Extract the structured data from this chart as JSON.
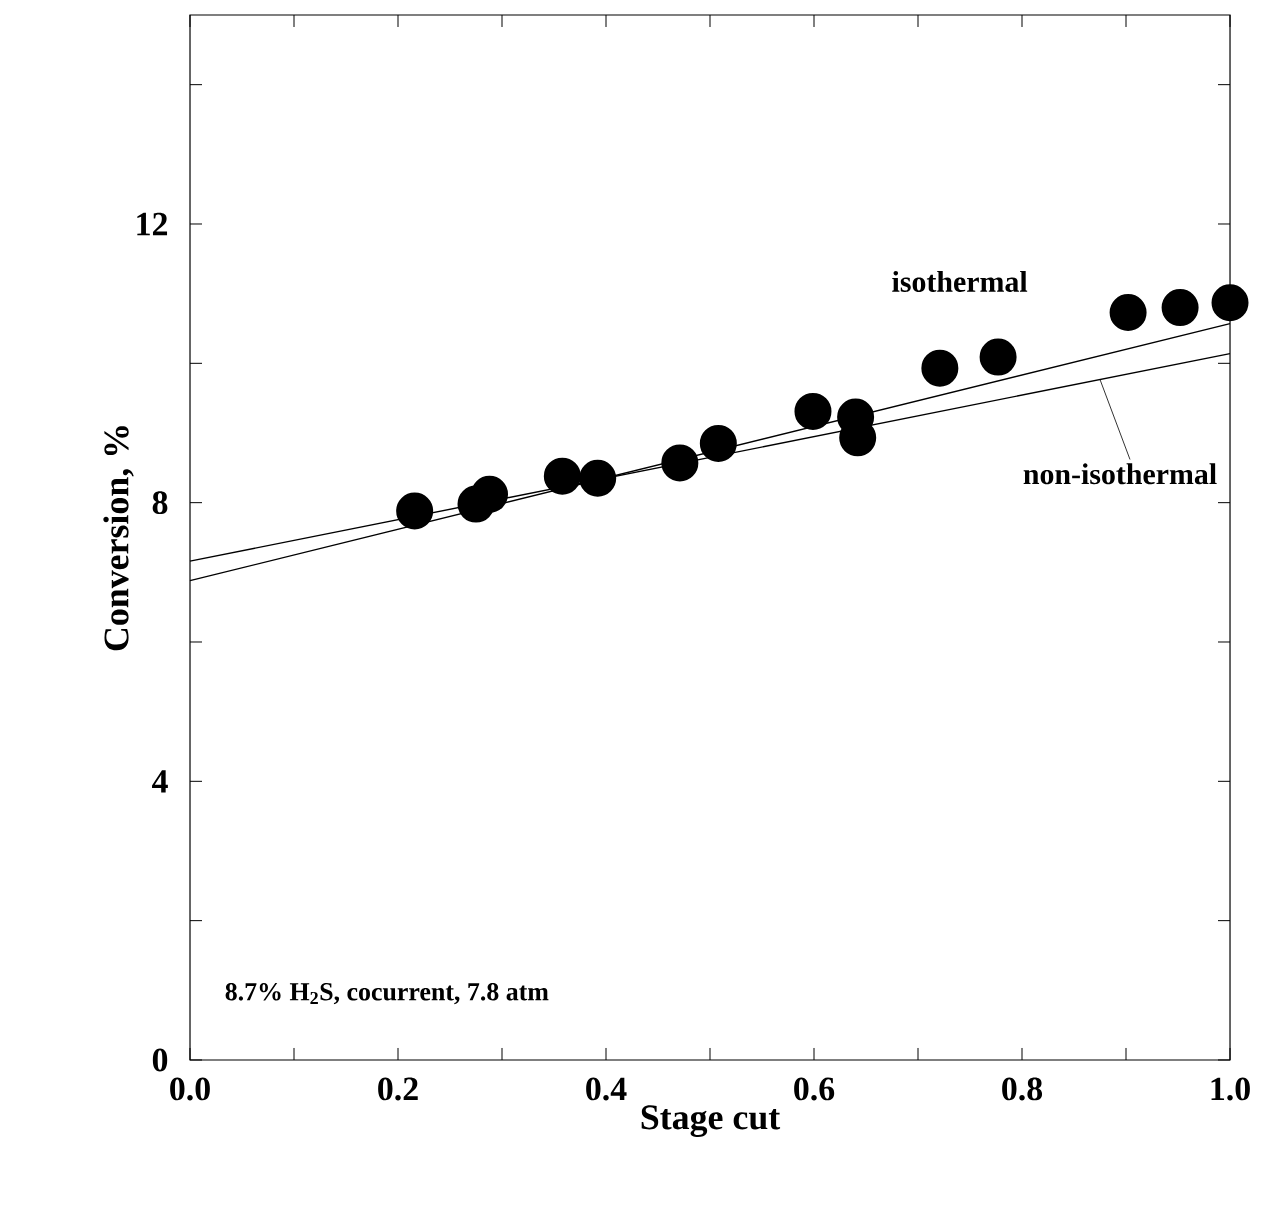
{
  "chart_data": {
    "type": "scatter",
    "xlabel": "Stage cut",
    "ylabel": "Conversion, %",
    "xlim": [
      0,
      1.0
    ],
    "ylim": [
      0,
      15
    ],
    "xticks": [
      {
        "value": 0,
        "label": "0.0"
      },
      {
        "value": 0.1,
        "label": null
      },
      0.2,
      {
        "value": 0.3,
        "label": null
      },
      0.4,
      {
        "value": 0.5,
        "label": null
      },
      0.6,
      {
        "value": 0.7,
        "label": null
      },
      0.8,
      {
        "value": 0.9,
        "label": null
      },
      {
        "value": 1.0,
        "label": "1.0"
      }
    ],
    "yticks": [
      0,
      {
        "value": 2,
        "label": null
      },
      4,
      {
        "value": 6,
        "label": null
      },
      8,
      {
        "value": 10,
        "label": null
      },
      12,
      {
        "value": 14,
        "label": null
      }
    ],
    "series": [
      {
        "type": "scatter",
        "marker": "circle",
        "color": "#000000",
        "x": [
          0.216,
          0.275,
          0.288,
          0.358,
          0.392,
          0.471,
          0.508,
          0.599,
          0.64,
          0.642,
          0.721,
          0.777,
          0.902,
          0.952,
          1.0
        ],
        "values": [
          7.88,
          7.98,
          8.12,
          8.38,
          8.35,
          8.57,
          8.85,
          9.31,
          9.23,
          8.93,
          9.93,
          10.09,
          10.73,
          10.8,
          10.87
        ]
      },
      {
        "type": "line",
        "name": "isothermal",
        "color": "#000000",
        "x": [
          0,
          1.0
        ],
        "values": [
          6.88,
          10.57
        ]
      },
      {
        "type": "line",
        "name": "non-isothermal",
        "color": "#000000",
        "x": [
          0,
          1.0
        ],
        "values": [
          7.16,
          10.14
        ]
      }
    ],
    "annotations": [
      "8.7% H$_{2}$S, cocurrent, 7.8 atm"
    ]
  }
}
